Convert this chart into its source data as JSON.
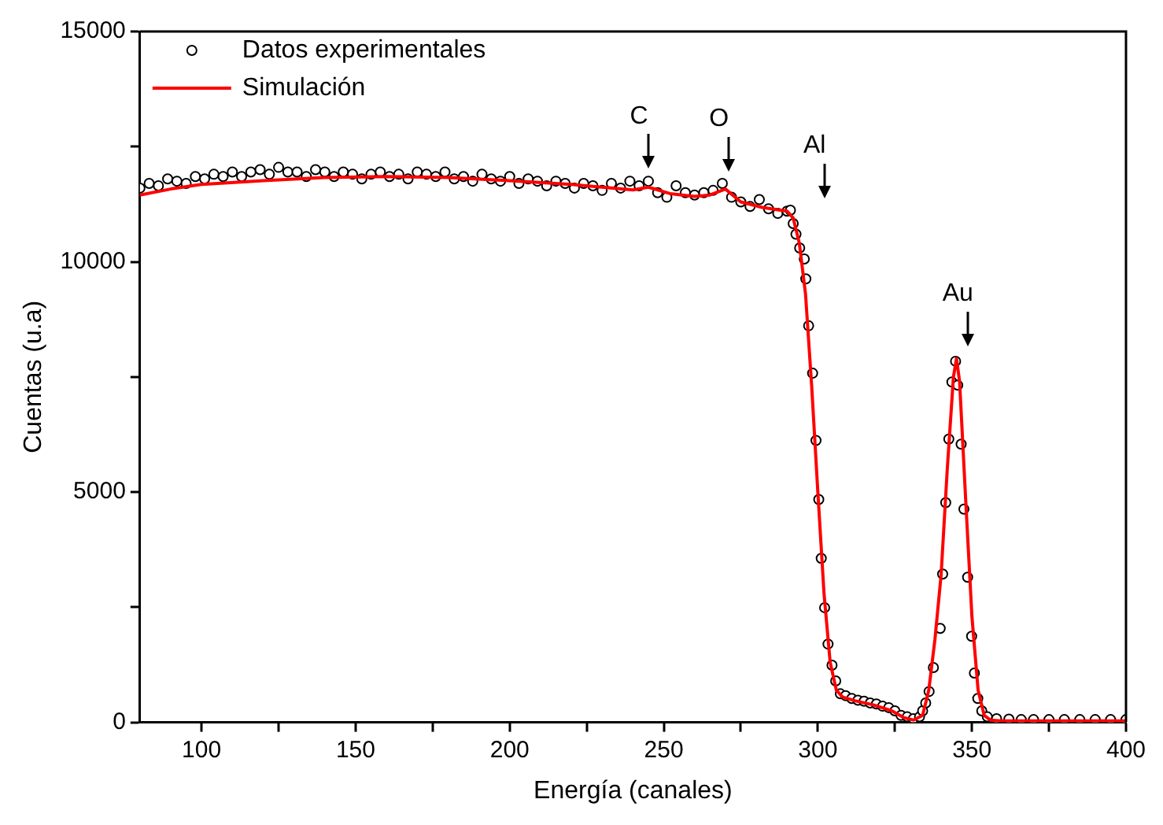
{
  "chart_data": {
    "type": "line",
    "xlabel": "Energía (canales)",
    "ylabel": "Cuentas (u.a)",
    "xlim": [
      80,
      400
    ],
    "xticks": [
      100,
      {
        "value": 125,
        "label": null
      },
      150,
      {
        "value": 175,
        "label": null
      },
      200,
      {
        "value": 225,
        "label": null
      },
      250,
      {
        "value": 275,
        "label": null
      },
      300,
      {
        "value": 325,
        "label": null
      },
      350,
      {
        "value": 375,
        "label": null
      },
      400
    ],
    "ylim": [
      0,
      15000
    ],
    "yticks": [
      0,
      {
        "value": 2500,
        "label": null
      },
      5000,
      {
        "value": 7500,
        "label": null
      },
      10000,
      {
        "value": 12500,
        "label": null
      },
      15000
    ],
    "grid": false,
    "legend": "top left",
    "annotations": [
      {
        "text": "C",
        "x": 245
      },
      {
        "text": "O",
        "x": 271
      },
      {
        "text": "Al",
        "x": 302
      },
      {
        "text": "Au",
        "x": 348.5
      }
    ],
    "series": [
      {
        "name": "Datos experimentales",
        "type": "scatter",
        "marker": "circle",
        "color": "#000000",
        "x": [
          80,
          83,
          86,
          89,
          92,
          95,
          98,
          101,
          104,
          107,
          110,
          113,
          116,
          119,
          122,
          125,
          128,
          131,
          134,
          137,
          140,
          143,
          146,
          149,
          152,
          155,
          158,
          161,
          164,
          167,
          170,
          173,
          176,
          179,
          182,
          185,
          188,
          191,
          194,
          197,
          200,
          203,
          206,
          209,
          212,
          215,
          218,
          221,
          224,
          227,
          230,
          233,
          236,
          239,
          242,
          245,
          248,
          251,
          254,
          257,
          260,
          263,
          266,
          269,
          272,
          275,
          278,
          281,
          284,
          287,
          290,
          291.1,
          292,
          292.9,
          294.1,
          295.6,
          296.1,
          297,
          298.3,
          299.4,
          300.3,
          301.1,
          302.2,
          303.3,
          304.6,
          305.8,
          307.3,
          309,
          311,
          313,
          315,
          317,
          319,
          321,
          323,
          325,
          327,
          329,
          331,
          333,
          334,
          335,
          336.1,
          337.5,
          339.7,
          340.5,
          341.5,
          342.5,
          343.5,
          344.7,
          345.4,
          346.5,
          347.4,
          348.6,
          349.9,
          350.8,
          351.9,
          353.2,
          355,
          358,
          362,
          366,
          370,
          375,
          380,
          385,
          390,
          395,
          400
        ],
        "values": [
          11600,
          11700,
          11650,
          11800,
          11750,
          11700,
          11850,
          11800,
          11900,
          11850,
          11950,
          11850,
          11950,
          12000,
          11900,
          12050,
          11950,
          11950,
          11850,
          12000,
          11950,
          11850,
          11950,
          11900,
          11800,
          11900,
          11950,
          11850,
          11900,
          11800,
          11950,
          11900,
          11850,
          11950,
          11800,
          11850,
          11750,
          11900,
          11800,
          11750,
          11850,
          11700,
          11800,
          11750,
          11650,
          11750,
          11700,
          11600,
          11700,
          11650,
          11550,
          11700,
          11600,
          11750,
          11650,
          11750,
          11500,
          11400,
          11650,
          11500,
          11450,
          11500,
          11550,
          11700,
          11400,
          11300,
          11200,
          11350,
          11150,
          11050,
          11100,
          11120,
          10830,
          10600,
          10300,
          10060,
          9630,
          8610,
          7580,
          6120,
          4840,
          3560,
          2490,
          1700,
          1240,
          900,
          620,
          580,
          520,
          480,
          460,
          420,
          400,
          350,
          320,
          250,
          150,
          120,
          80,
          120,
          250,
          420,
          670,
          1190,
          2040,
          3220,
          4770,
          6150,
          7390,
          7840,
          7320,
          6040,
          4630,
          3150,
          1870,
          1070,
          520,
          250,
          120,
          80,
          70,
          60,
          60,
          60,
          60,
          60,
          60,
          60,
          60
        ]
      },
      {
        "name": "Simulación",
        "type": "line",
        "marker": "none",
        "line_style": "solid",
        "color": "#ff0000",
        "x": [
          80,
          90,
          100,
          120,
          140,
          160,
          180,
          200,
          220,
          240,
          245,
          252,
          260,
          265,
          270,
          275,
          282,
          290,
          292,
          294,
          296,
          298,
          300,
          302,
          304,
          306,
          308,
          312,
          318,
          324,
          328,
          331,
          334,
          336,
          338,
          340,
          342,
          344,
          345,
          346,
          348,
          350,
          352,
          354,
          356,
          360,
          400
        ],
        "values": [
          11450,
          11580,
          11680,
          11760,
          11830,
          11850,
          11830,
          11760,
          11680,
          11560,
          11620,
          11480,
          11420,
          11450,
          11580,
          11300,
          11180,
          11100,
          10950,
          10400,
          9300,
          7300,
          5000,
          2800,
          1300,
          700,
          550,
          470,
          380,
          250,
          100,
          50,
          150,
          700,
          1800,
          3200,
          5500,
          7500,
          7900,
          7400,
          4800,
          2300,
          700,
          150,
          50,
          30,
          30
        ]
      }
    ]
  }
}
